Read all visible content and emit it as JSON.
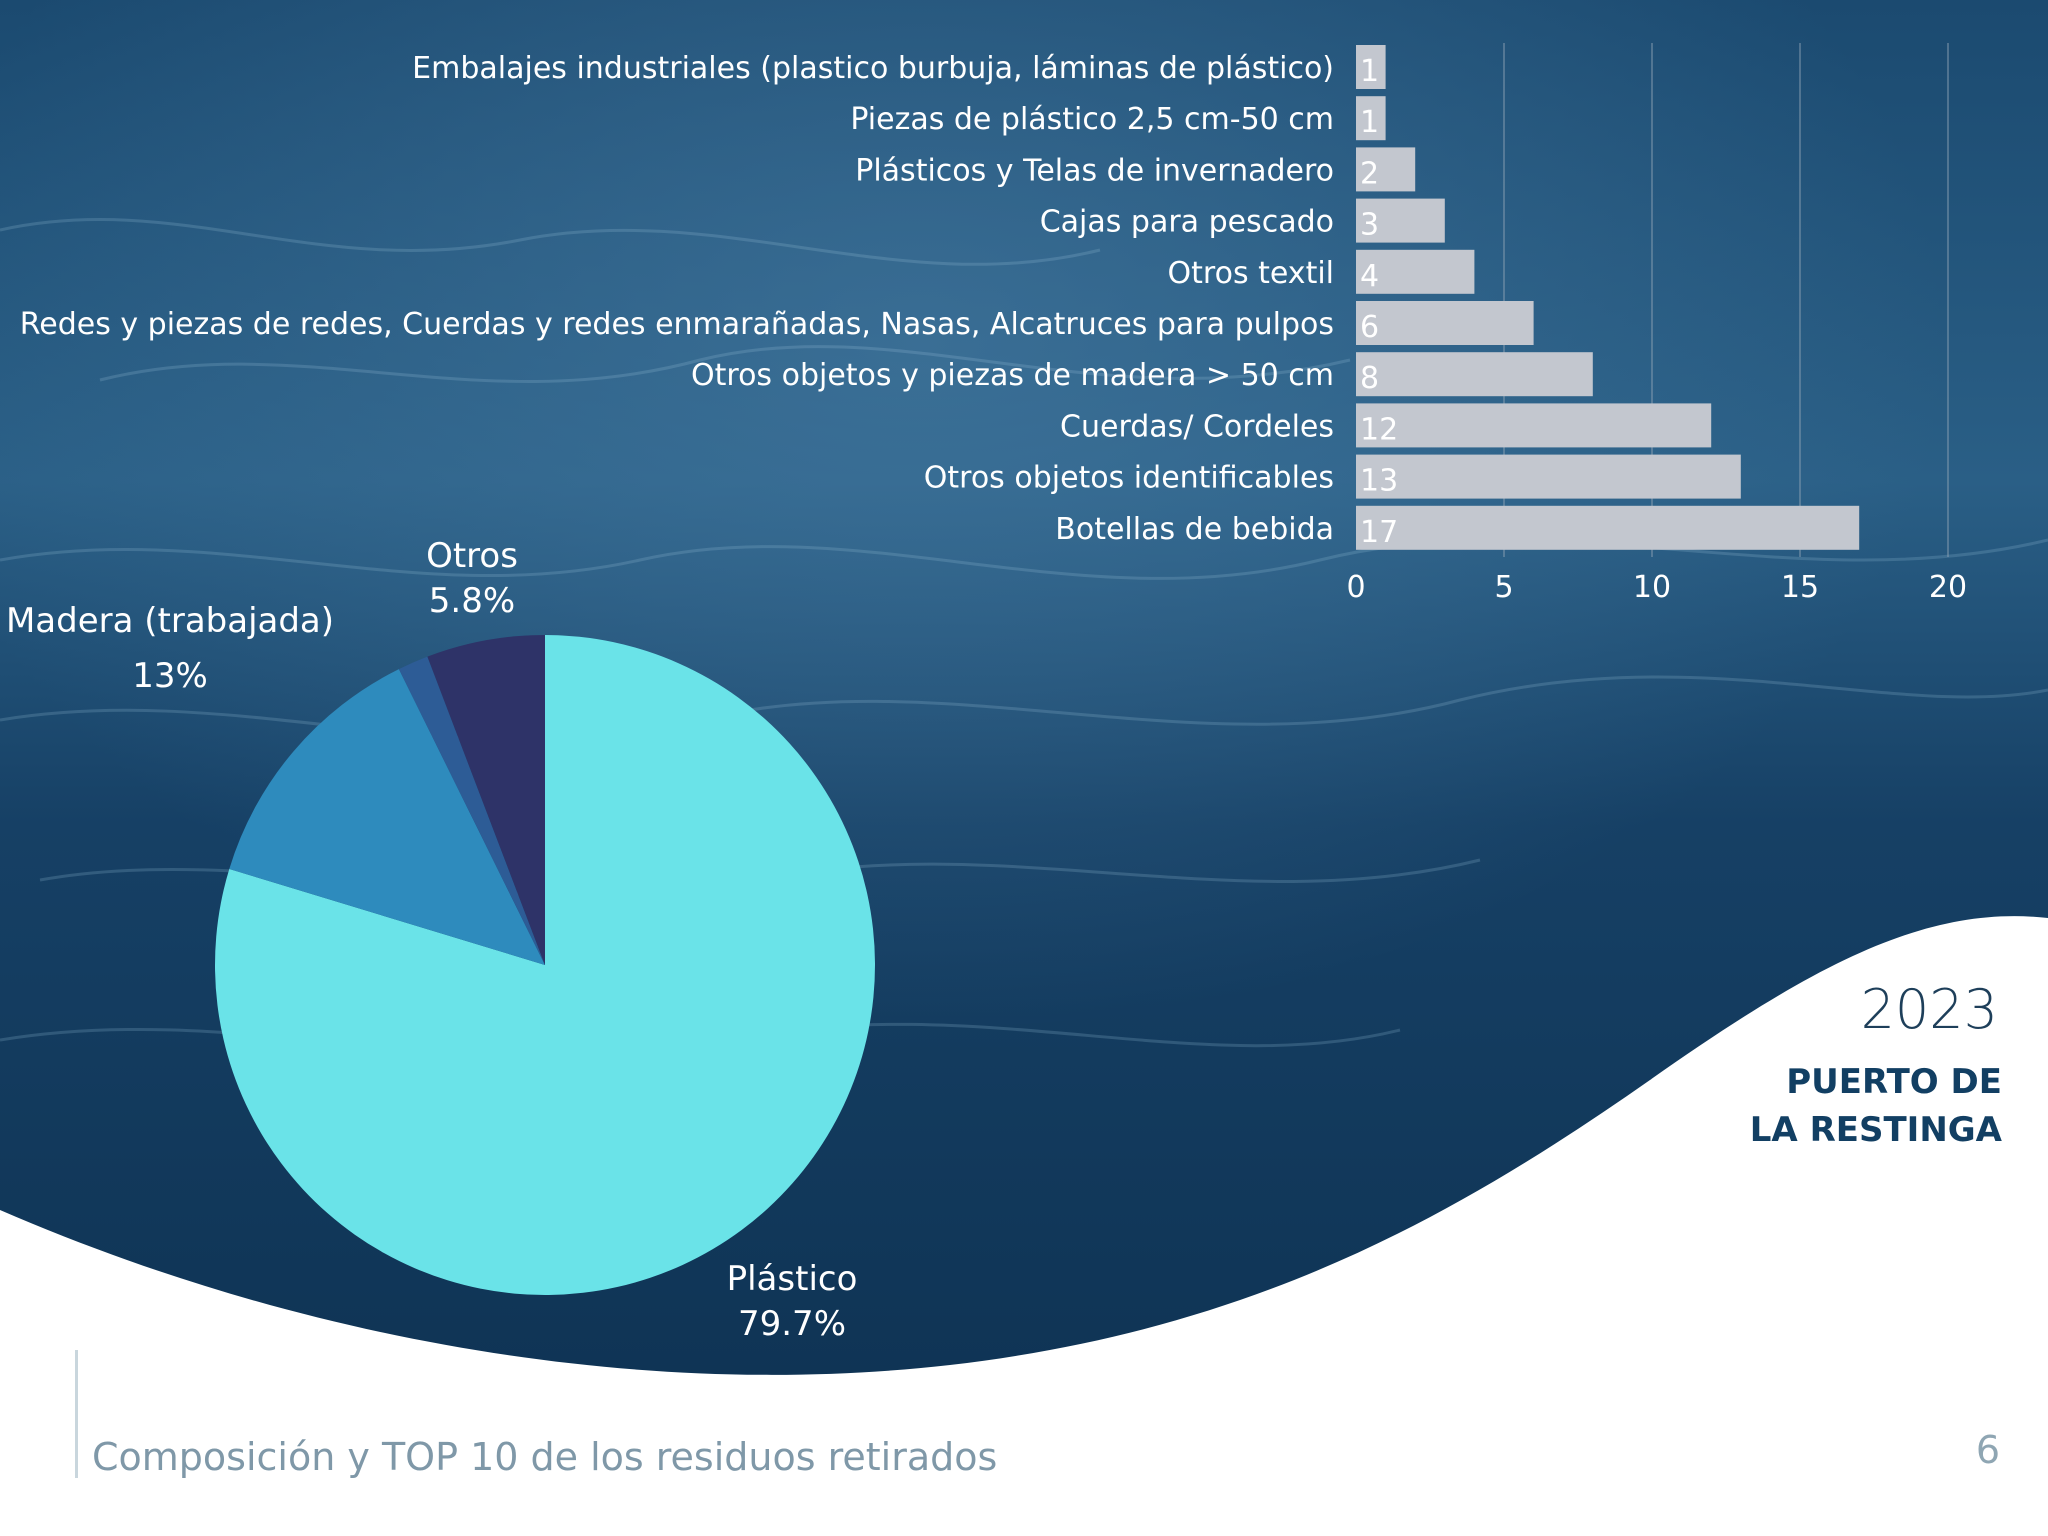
{
  "slide": {
    "year": "2023",
    "location_line1": "PUERTO DE",
    "location_line2": "LA RESTINGA",
    "footer_title": "Composición y TOP 10 de los residuos retirados",
    "page_number": "6"
  },
  "colors": {
    "sea_dark": "#163f62",
    "sea_mid": "#2d6187",
    "bar_fill": "#c3c7cf",
    "gridline": "#8fa3b6",
    "label_text": "#ffffff",
    "pie_plastico": "#6ae3e8",
    "pie_madera": "#2e8bbd",
    "pie_small": "#2d5c96",
    "pie_otros": "#2e3368",
    "heading": "#123f63"
  },
  "chart_data": [
    {
      "type": "bar",
      "orientation": "horizontal",
      "categories": [
        "Embalajes industriales (plastico burbuja, láminas de plástico)",
        "Piezas de plástico 2,5 cm-50 cm",
        "Plásticos y Telas de invernadero",
        "Cajas para pescado",
        "Otros textil",
        "Redes y piezas de redes, Cuerdas y redes enmarañadas, Nasas, Alcatruces para pulpos",
        "Otros objetos y piezas de madera > 50 cm",
        "Cuerdas/ Cordeles",
        "Otros objetos identificables",
        "Botellas de bebida"
      ],
      "values": [
        1,
        1,
        2,
        3,
        4,
        6,
        8,
        12,
        13,
        17
      ],
      "value_labels": [
        "1",
        "1",
        "2",
        "3",
        "4",
        "6",
        "8",
        "12",
        "13",
        "17"
      ],
      "xlim": [
        0,
        20
      ],
      "xticks": [
        "0",
        "5",
        "10",
        "15",
        "20"
      ],
      "grid": true
    },
    {
      "type": "pie",
      "slices": [
        {
          "label": "Plástico",
          "value": 79.7,
          "display": "79.7%"
        },
        {
          "label": "Madera (trabajada)",
          "value": 13,
          "display": "13%"
        },
        {
          "label": "",
          "value": 1.5,
          "display": ""
        },
        {
          "label": "Otros",
          "value": 5.8,
          "display": "5.8%"
        }
      ]
    }
  ]
}
